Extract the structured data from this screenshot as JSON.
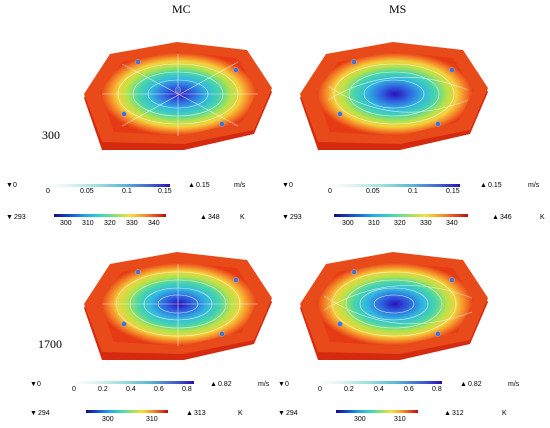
{
  "columns": {
    "left": "MC",
    "right": "MS"
  },
  "rows": {
    "top": "300",
    "bottom": "1700"
  },
  "icons": {
    "max": "max-triangle-icon",
    "min": "min-triangle-icon"
  },
  "colors": {
    "plate_hot": "#e63a14",
    "plate_cool": "#2a3fd0",
    "streamline": "#f4f4f4"
  },
  "legends": {
    "top_left_vel": {
      "min": "0",
      "max": "0.15",
      "unit": "m/s",
      "ticks": [
        "0",
        "0.05",
        "0.1",
        "0.15"
      ]
    },
    "top_left_temp": {
      "min": "293",
      "max": "348",
      "unit": "K",
      "ticks": [
        "300",
        "310",
        "320",
        "330",
        "340"
      ]
    },
    "top_right_vel": {
      "min": "0",
      "max": "0.15",
      "unit": "m/s",
      "ticks": [
        "0",
        "0.05",
        "0.1",
        "0.15"
      ]
    },
    "top_right_temp": {
      "min": "293",
      "max": "346",
      "unit": "K",
      "ticks": [
        "300",
        "310",
        "320",
        "330",
        "340"
      ]
    },
    "bot_left_vel": {
      "min": "0",
      "max": "0.82",
      "unit": "m/s",
      "ticks": [
        "0",
        "0.2",
        "0.4",
        "0.6",
        "0.8"
      ]
    },
    "bot_left_temp": {
      "min": "294",
      "max": "313",
      "unit": "K",
      "ticks": [
        "300",
        "310"
      ]
    },
    "bot_right_vel": {
      "min": "0",
      "max": "0.82",
      "unit": "m/s",
      "ticks": [
        "0",
        "0.2",
        "0.4",
        "0.6",
        "0.8"
      ]
    },
    "bot_right_temp": {
      "min": "294",
      "max": "312",
      "unit": "K",
      "ticks": [
        "300",
        "310"
      ]
    }
  }
}
